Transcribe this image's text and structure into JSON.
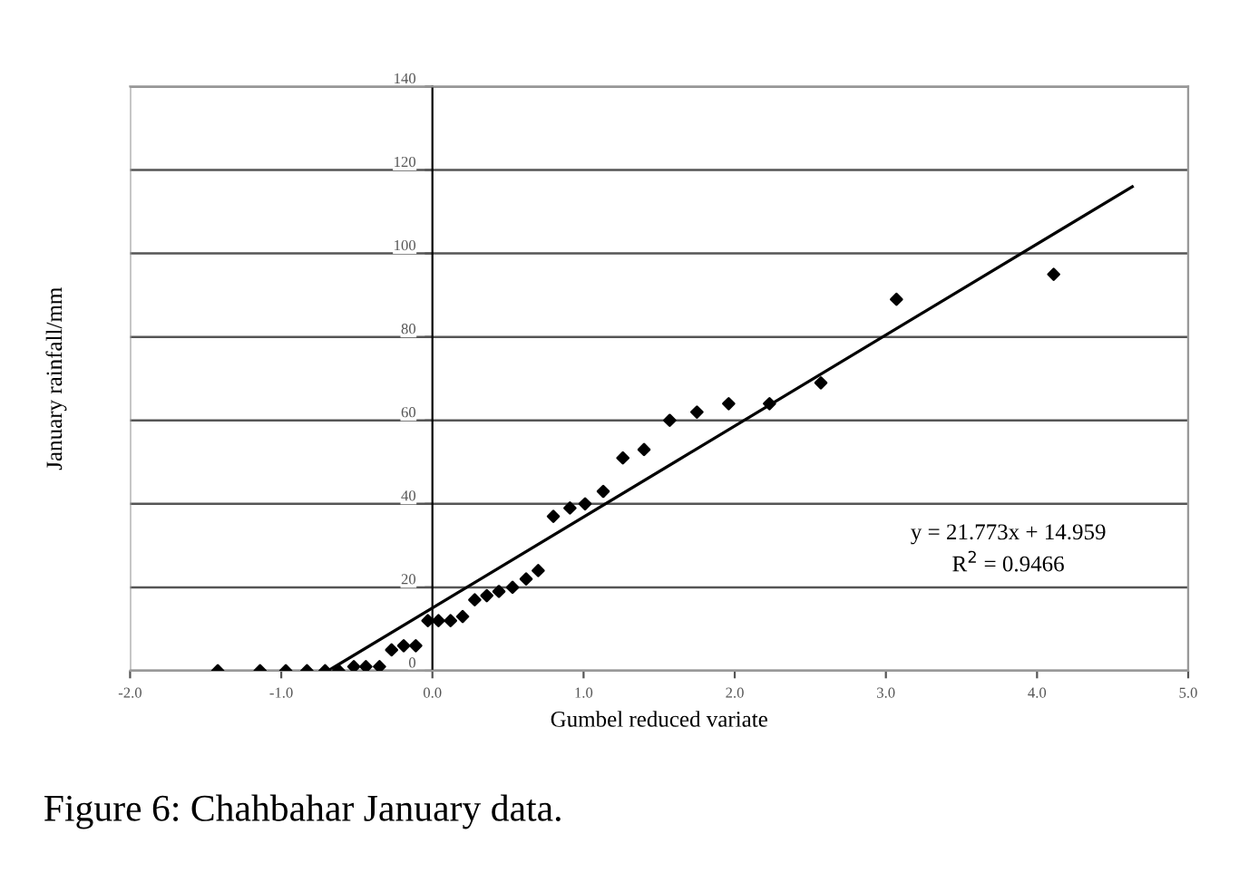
{
  "chart_data": {
    "type": "scatter",
    "xlabel": "Gumbel reduced variate",
    "ylabel": "January rainfall/mm",
    "annotations": [
      "y = 21.773x + 14.959",
      "R$^{2}$ = 0.9466",
      "Figure 6: Chahbahar January data."
    ],
    "series": [
      {
        "type": "scatter",
        "color": "#000000",
        "marker": "diamond",
        "x": [
          -1.42,
          -1.14,
          -0.97,
          -0.83,
          -0.71,
          -0.62,
          -0.52,
          -0.44,
          -0.35,
          -0.27,
          -0.19,
          -0.11,
          -0.03,
          0.04,
          0.12,
          0.2,
          0.28,
          0.36,
          0.44,
          0.53,
          0.62,
          0.7,
          0.8,
          0.91,
          1.01,
          1.13,
          1.26,
          1.4,
          1.57,
          1.75,
          1.96,
          2.23,
          2.57,
          3.07,
          4.11
        ],
        "values": [
          0,
          0,
          0,
          0,
          0,
          0,
          1,
          1,
          1,
          5,
          6,
          6,
          12,
          12,
          12,
          13,
          17,
          18,
          19,
          20,
          22,
          24,
          37,
          39,
          40,
          43,
          51,
          53,
          60,
          62,
          64,
          64,
          69,
          89,
          95
        ]
      },
      {
        "type": "line",
        "color": "#000000",
        "marker": "none",
        "line_style": "solid",
        "x": [
          -0.69,
          4.63
        ],
        "values": [
          0,
          116
        ]
      }
    ],
    "xlim": [
      -2,
      5
    ],
    "ylim": [
      0,
      140
    ],
    "xticks": [
      {
        "value": -2,
        "label": "-2.0"
      },
      {
        "value": -1,
        "label": "-1.0"
      },
      {
        "value": 0,
        "label": "0.0"
      },
      {
        "value": 1,
        "label": "1.0"
      },
      {
        "value": 2,
        "label": "2.0"
      },
      {
        "value": 3,
        "label": "3.0"
      },
      {
        "value": 4,
        "label": "4.0"
      },
      {
        "value": 5,
        "label": "5.0"
      }
    ],
    "yticks": [
      0,
      20,
      40,
      60,
      80,
      100,
      120,
      140
    ],
    "grid": "y",
    "legend": false
  }
}
